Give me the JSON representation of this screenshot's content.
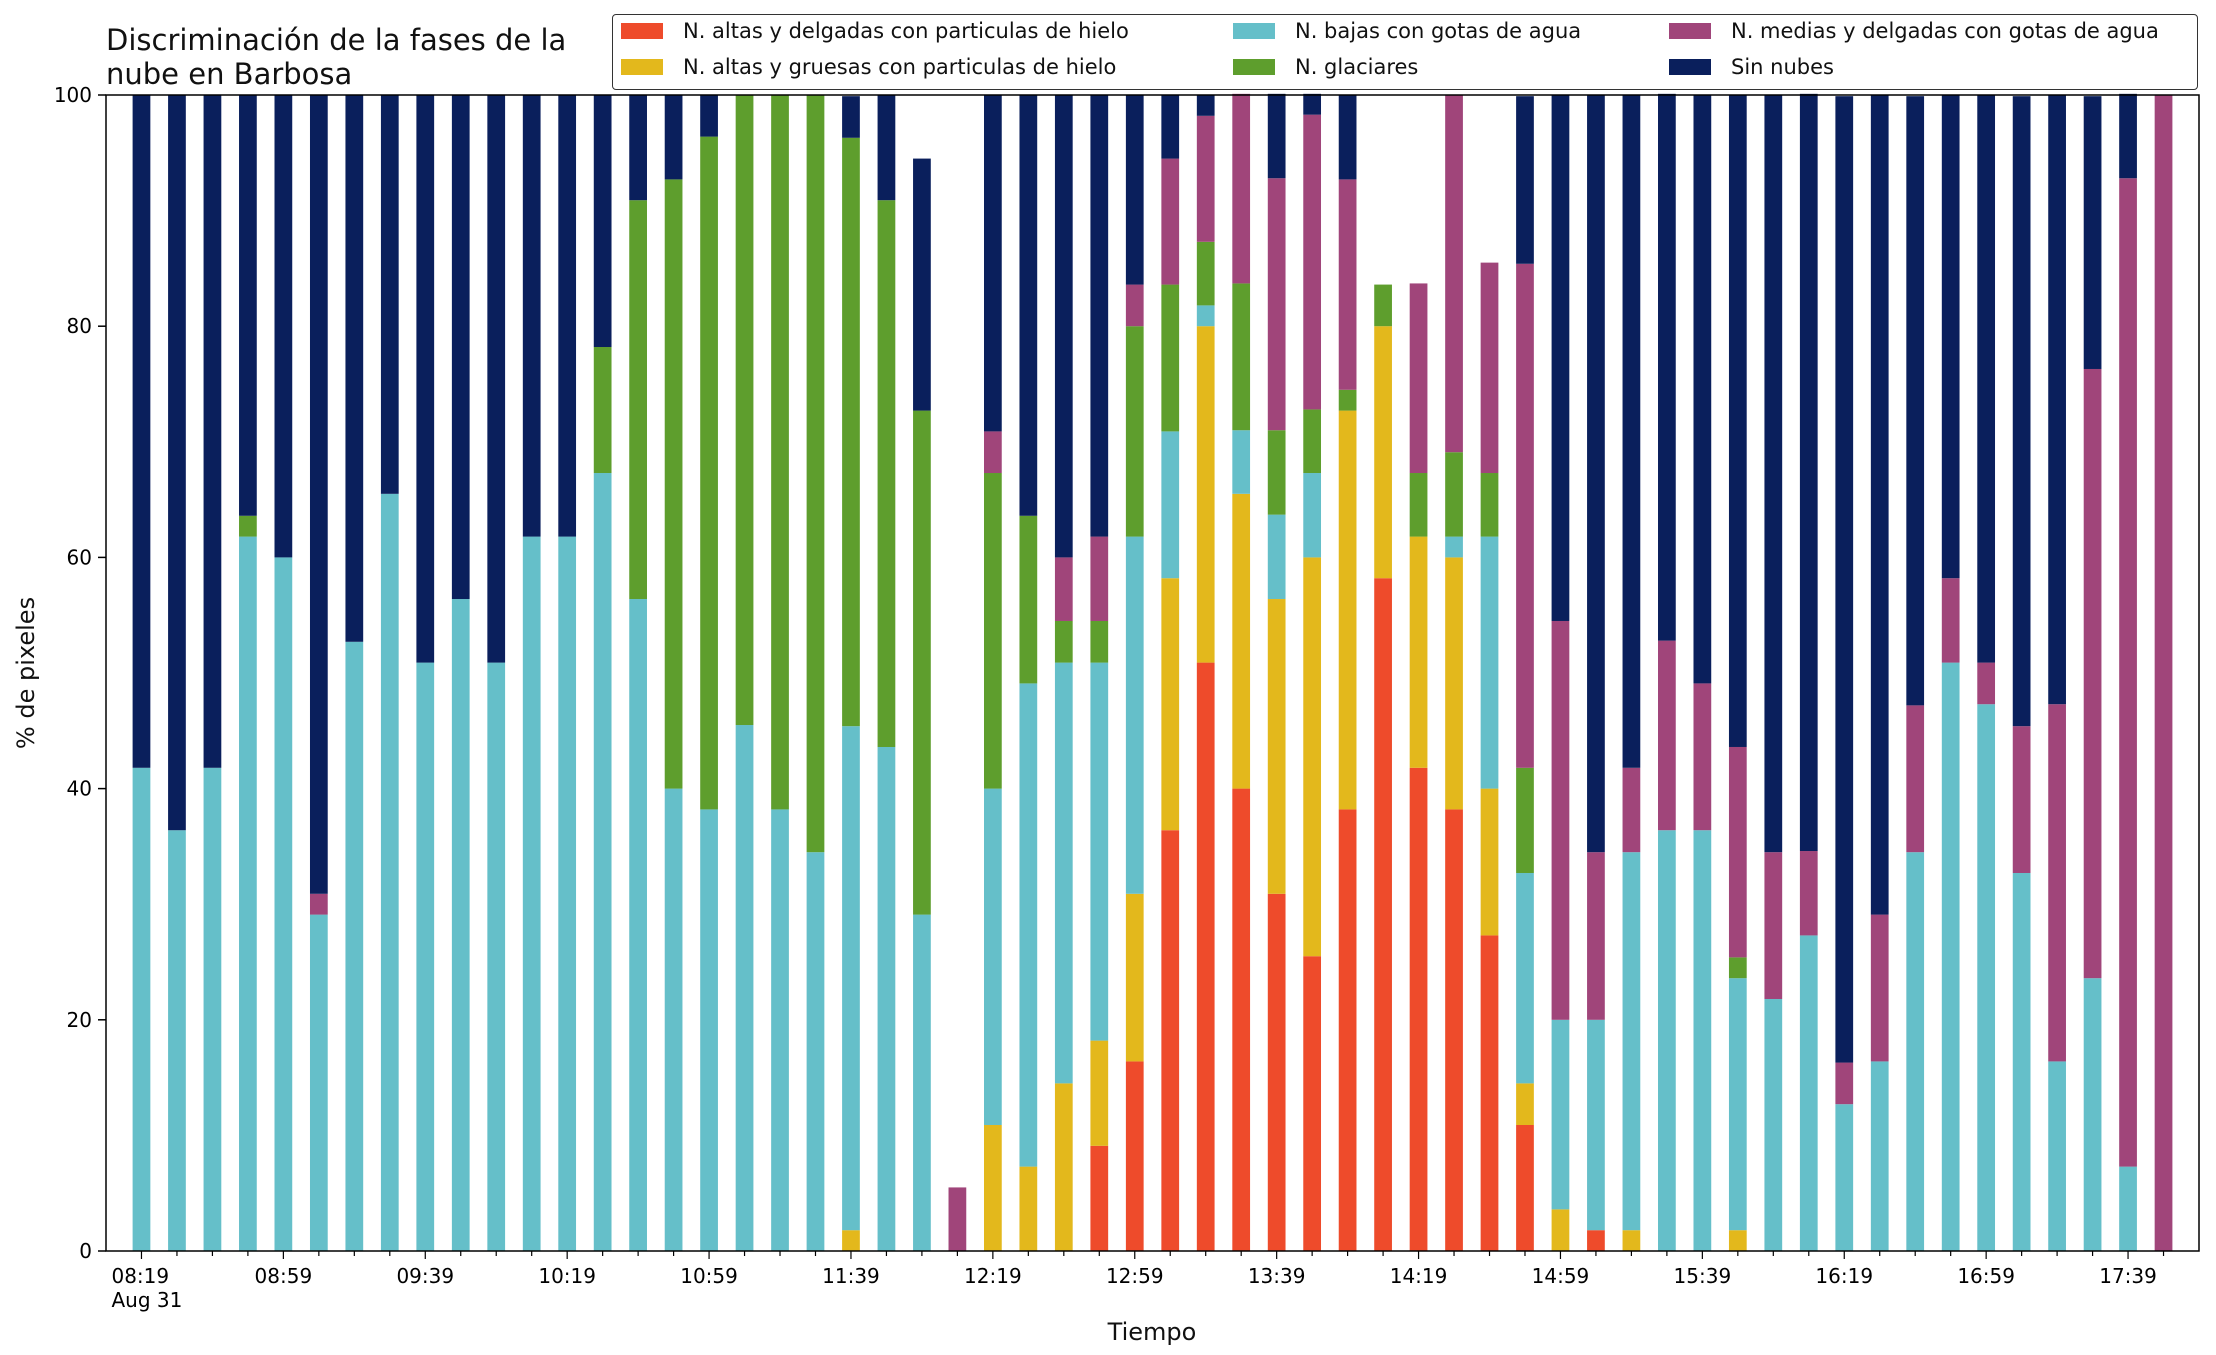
{
  "chart_data": {
    "type": "bar",
    "stacked": true,
    "title": "Discriminación de la fases de la\nnube en Barbosa",
    "xlabel": "Tiempo",
    "ylabel": "% de pixeles",
    "ylim": [
      0,
      100
    ],
    "yticks": [
      0,
      20,
      40,
      60,
      80,
      100
    ],
    "legend_position": "top-right",
    "grid": false,
    "x_tick_labels": [
      "08:19\nAug 31",
      "08:59",
      "09:39",
      "10:19",
      "10:59",
      "11:39",
      "12:19",
      "12:59",
      "13:39",
      "14:19",
      "14:59",
      "15:39",
      "16:19",
      "16:59",
      "17:39"
    ],
    "categories": [
      "08:19",
      "08:29",
      "08:39",
      "08:49",
      "08:59",
      "09:09",
      "09:19",
      "09:29",
      "09:39",
      "09:49",
      "09:59",
      "10:09",
      "10:19",
      "10:29",
      "10:39",
      "10:49",
      "10:59",
      "11:09",
      "11:19",
      "11:29",
      "11:39",
      "11:49",
      "11:59",
      "12:09",
      "12:19",
      "12:29",
      "12:39",
      "12:49",
      "12:59",
      "13:09",
      "13:19",
      "13:29",
      "13:39",
      "13:49",
      "13:59",
      "14:09",
      "14:19",
      "14:29",
      "14:39",
      "14:49",
      "14:59",
      "15:09",
      "15:19",
      "15:29",
      "15:39",
      "15:49",
      "15:59",
      "16:09",
      "16:19",
      "16:29",
      "16:39",
      "16:49",
      "16:59",
      "17:09",
      "17:19",
      "17:29",
      "17:39",
      "17:49"
    ],
    "series": [
      {
        "name": "N. altas y delgadas con particulas de hielo",
        "color": "#ee4b2b",
        "values": [
          0,
          0,
          0,
          0,
          0,
          0,
          0,
          0,
          0,
          0,
          0,
          0,
          0,
          0,
          0,
          0,
          0,
          0,
          0,
          0,
          0,
          0,
          0,
          0,
          0,
          0,
          0,
          9.1,
          16.4,
          36.4,
          50.9,
          40,
          30.9,
          25.5,
          38.2,
          58.2,
          41.8,
          38.2,
          27.3,
          10.9,
          0,
          1.8,
          0,
          0,
          0,
          0,
          0,
          0,
          0,
          0,
          0,
          0,
          0,
          0,
          0,
          0,
          0,
          0
        ]
      },
      {
        "name": "N. altas y gruesas con particulas de hielo",
        "color": "#e3b81c",
        "values": [
          0,
          0,
          0,
          0,
          0,
          0,
          0,
          0,
          0,
          0,
          0,
          0,
          0,
          0,
          0,
          0,
          0,
          0,
          0,
          0,
          1.8,
          0,
          0,
          0,
          10.9,
          7.3,
          14.5,
          9.1,
          14.5,
          21.8,
          29.1,
          25.5,
          25.5,
          34.5,
          34.5,
          21.8,
          20,
          21.8,
          12.7,
          3.6,
          3.6,
          0,
          1.8,
          0,
          0,
          1.8,
          0,
          0,
          0,
          0,
          0,
          0,
          0,
          0,
          0,
          0,
          0,
          0
        ]
      },
      {
        "name": "N. bajas con gotas de agua",
        "color": "#65bfc9",
        "values": [
          41.8,
          36.4,
          41.8,
          61.8,
          60,
          29.1,
          52.7,
          65.5,
          50.9,
          56.4,
          50.9,
          61.8,
          61.8,
          67.3,
          56.4,
          40,
          38.2,
          45.5,
          38.2,
          34.5,
          43.6,
          43.6,
          29.1,
          0,
          29.1,
          41.8,
          36.4,
          32.7,
          30.9,
          12.7,
          1.8,
          5.5,
          7.3,
          7.3,
          0,
          0,
          0,
          1.8,
          21.8,
          18.2,
          16.4,
          18.2,
          32.7,
          36.4,
          36.4,
          21.8,
          21.8,
          27.3,
          12.7,
          16.4,
          34.5,
          50.9,
          47.3,
          32.7,
          16.4,
          23.6,
          7.3,
          0
        ]
      },
      {
        "name": "N. glaciares",
        "color": "#5e9e2d",
        "values": [
          0,
          0,
          0,
          1.8,
          0,
          0,
          0,
          0,
          0,
          0,
          0,
          0,
          0,
          10.9,
          34.5,
          52.7,
          58.2,
          54.5,
          61.8,
          65.5,
          50.9,
          47.3,
          43.6,
          0,
          27.3,
          14.5,
          3.6,
          3.6,
          18.2,
          12.7,
          5.5,
          12.7,
          7.3,
          5.5,
          1.8,
          3.6,
          5.5,
          7.3,
          5.5,
          9.1,
          0,
          0,
          0,
          0,
          0,
          1.8,
          0,
          0,
          0,
          0,
          0,
          0,
          0,
          0,
          0,
          0,
          0,
          0
        ]
      },
      {
        "name": "N. medias y delgadas con gotas de agua",
        "color": "#a0457a",
        "values": [
          0,
          0,
          0,
          0,
          0,
          1.8,
          0,
          0,
          0,
          0,
          0,
          0,
          0,
          0,
          0,
          0,
          0,
          0,
          0,
          0,
          0,
          0,
          0,
          5.5,
          3.6,
          0,
          5.5,
          7.3,
          3.6,
          10.9,
          10.9,
          16.4,
          21.8,
          25.5,
          18.2,
          0,
          16.4,
          30.9,
          18.2,
          43.6,
          34.5,
          14.5,
          7.3,
          16.4,
          12.7,
          18.2,
          12.7,
          7.3,
          3.6,
          12.7,
          12.7,
          7.3,
          3.6,
          12.7,
          30.9,
          52.7,
          85.5,
          100
        ]
      },
      {
        "name": "Sin nubes",
        "color": "#0a1f5c",
        "values": [
          58.2,
          63.6,
          58.2,
          36.4,
          40,
          69.1,
          47.3,
          34.5,
          49.1,
          43.6,
          49.1,
          38.2,
          38.2,
          21.8,
          9.1,
          7.3,
          3.6,
          0,
          0,
          0,
          3.6,
          9.1,
          21.8,
          0,
          29.1,
          36.4,
          40,
          38.2,
          16.4,
          5.5,
          1.8,
          0,
          7.3,
          1.8,
          7.3,
          0,
          0,
          0,
          0,
          14.5,
          45.5,
          65.5,
          58.2,
          47.3,
          50.9,
          56.4,
          65.5,
          65.5,
          83.6,
          70.9,
          52.7,
          41.8,
          49.1,
          54.5,
          52.7,
          23.6,
          7.3,
          0
        ]
      }
    ]
  }
}
